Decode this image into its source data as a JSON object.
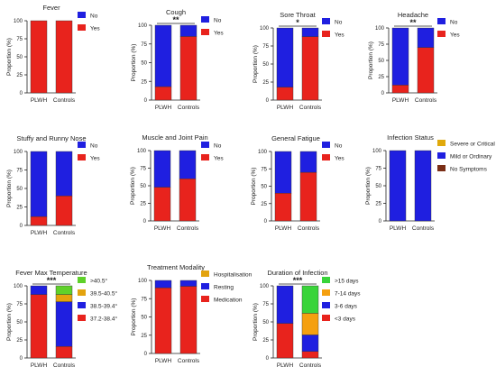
{
  "figure": {
    "colors": {
      "no": "#1f1fe0",
      "yes": "#e8231d",
      "severe": "#e0a90b",
      "mild": "#1f1fe0",
      "no_symptoms": "#7a2e16",
      "t405": "#5fd12a",
      "t395": "#e3a30e",
      "t385": "#1f1fe0",
      "t372": "#e8231d",
      "hospital": "#e3a30e",
      "resting": "#1f1fe0",
      "medication": "#e8231d",
      "d15": "#39d43a",
      "d714": "#f5a00f",
      "d36": "#1f1fe0",
      "d3": "#e8231d",
      "axis": "#222222"
    },
    "charts": [
      {
        "id": "fever",
        "type": "bar",
        "stacked": true,
        "title": "Fever",
        "ylabel": "Proportion (%)",
        "ylim": [
          0,
          100
        ],
        "yticks": [
          "0",
          "25",
          "50",
          "75",
          "100"
        ],
        "categories": [
          "PLWH",
          "Controls"
        ],
        "significance": "",
        "series": [
          {
            "name": "No",
            "color_key": "no",
            "values": [
              0,
              0
            ]
          },
          {
            "name": "Yes",
            "color_key": "yes",
            "values": [
              100,
              100
            ]
          }
        ]
      },
      {
        "id": "cough",
        "type": "bar",
        "stacked": true,
        "title": "Cough",
        "ylabel": "Proportion (%)",
        "ylim": [
          0,
          100
        ],
        "yticks": [
          "0",
          "25",
          "50",
          "75",
          "100"
        ],
        "categories": [
          "PLWH",
          "Controls"
        ],
        "significance": "**",
        "series": [
          {
            "name": "No",
            "color_key": "no",
            "values": [
              82,
              15
            ]
          },
          {
            "name": "Yes",
            "color_key": "yes",
            "values": [
              18,
              85
            ]
          }
        ]
      },
      {
        "id": "sore_throat",
        "type": "bar",
        "stacked": true,
        "title": "Sore Throat",
        "ylabel": "Proportion (%)",
        "ylim": [
          0,
          100
        ],
        "yticks": [
          "0",
          "25",
          "50",
          "75",
          "100"
        ],
        "categories": [
          "PLWH",
          "Controls"
        ],
        "significance": "*",
        "series": [
          {
            "name": "No",
            "color_key": "no",
            "values": [
              82,
              12
            ]
          },
          {
            "name": "Yes",
            "color_key": "yes",
            "values": [
              18,
              88
            ]
          }
        ]
      },
      {
        "id": "headache",
        "type": "bar",
        "stacked": true,
        "title": "Headache",
        "ylabel": "Proportion (%)",
        "ylim": [
          0,
          100
        ],
        "yticks": [
          "0",
          "25",
          "50",
          "75",
          "100"
        ],
        "categories": [
          "PLWH",
          "Controls"
        ],
        "significance": "**",
        "series": [
          {
            "name": "No",
            "color_key": "no",
            "values": [
              88,
              30
            ]
          },
          {
            "name": "Yes",
            "color_key": "yes",
            "values": [
              12,
              70
            ]
          }
        ]
      },
      {
        "id": "stuffy_nose",
        "type": "bar",
        "stacked": true,
        "title": "Stuffy and Runny Nose",
        "ylabel": "Proportion (%)",
        "ylim": [
          0,
          100
        ],
        "yticks": [
          "0",
          "25",
          "50",
          "75",
          "100"
        ],
        "categories": [
          "PLWH",
          "Controls"
        ],
        "significance": "",
        "series": [
          {
            "name": "No",
            "color_key": "no",
            "values": [
              88,
              60
            ]
          },
          {
            "name": "Yes",
            "color_key": "yes",
            "values": [
              12,
              40
            ]
          }
        ]
      },
      {
        "id": "muscle_joint",
        "type": "bar",
        "stacked": true,
        "title": "Muscle and Joint Pain",
        "ylabel": "Proportion (%)",
        "ylim": [
          0,
          100
        ],
        "yticks": [
          "0",
          "25",
          "50",
          "75",
          "100"
        ],
        "categories": [
          "PLWH",
          "Controls"
        ],
        "significance": "",
        "series": [
          {
            "name": "No",
            "color_key": "no",
            "values": [
              52,
              40
            ]
          },
          {
            "name": "Yes",
            "color_key": "yes",
            "values": [
              48,
              60
            ]
          }
        ]
      },
      {
        "id": "fatigue",
        "type": "bar",
        "stacked": true,
        "title": "General Fatigue",
        "ylabel": "Proportion (%)",
        "ylim": [
          0,
          100
        ],
        "yticks": [
          "0",
          "25",
          "50",
          "75",
          "100"
        ],
        "categories": [
          "PLWH",
          "Controls"
        ],
        "significance": "",
        "series": [
          {
            "name": "No",
            "color_key": "no",
            "values": [
              60,
              30
            ]
          },
          {
            "name": "Yes",
            "color_key": "yes",
            "values": [
              40,
              70
            ]
          }
        ]
      },
      {
        "id": "infection_status",
        "type": "bar",
        "stacked": true,
        "title": "Infection Status",
        "ylabel": "Proportion (%)",
        "ylim": [
          0,
          100
        ],
        "yticks": [
          "0",
          "25",
          "50",
          "75",
          "100"
        ],
        "categories": [
          "PLWH",
          "Controls"
        ],
        "significance": "",
        "series": [
          {
            "name": "Severe or Critical",
            "color_key": "severe",
            "values": [
              0,
              0
            ]
          },
          {
            "name": "Mild or Ordinary",
            "color_key": "mild",
            "values": [
              100,
              100
            ]
          },
          {
            "name": "No Symptoms",
            "color_key": "no_symptoms",
            "values": [
              0,
              0
            ]
          }
        ]
      },
      {
        "id": "fever_max_temp",
        "type": "bar",
        "stacked": true,
        "title": "Fever Max Temperature",
        "ylabel": "Proportion (%)",
        "ylim": [
          0,
          100
        ],
        "yticks": [
          "0",
          "25",
          "50",
          "75",
          "100"
        ],
        "categories": [
          "PLWH",
          "Controls"
        ],
        "significance": "***",
        "series": [
          {
            "name": ">40.5°",
            "color_key": "t405",
            "values": [
              0,
              12
            ]
          },
          {
            "name": "39.5-40.5°",
            "color_key": "t395",
            "values": [
              0,
              10
            ]
          },
          {
            "name": "38.5-39.4°",
            "color_key": "t385",
            "values": [
              12,
              62
            ]
          },
          {
            "name": "37.2-38.4°",
            "color_key": "t372",
            "values": [
              88,
              16
            ]
          }
        ]
      },
      {
        "id": "treatment_modality",
        "type": "bar",
        "stacked": true,
        "title": "Treatment Modality",
        "ylabel": "Proportion (%)",
        "ylim": [
          0,
          100
        ],
        "yticks": [
          "0",
          "25",
          "50",
          "75",
          "100"
        ],
        "categories": [
          "PLWH",
          "Controls"
        ],
        "significance": "",
        "series": [
          {
            "name": "Hospitalisation",
            "color_key": "hospital",
            "values": [
              0,
              0
            ]
          },
          {
            "name": "Resting",
            "color_key": "resting",
            "values": [
              10,
              8
            ]
          },
          {
            "name": "Medication",
            "color_key": "medication",
            "values": [
              90,
              92
            ]
          }
        ]
      },
      {
        "id": "duration",
        "type": "bar",
        "stacked": true,
        "title": "Duration of Infection",
        "ylabel": "Proportion (%)",
        "ylim": [
          0,
          100
        ],
        "yticks": [
          "0",
          "25",
          "50",
          "75",
          "100"
        ],
        "categories": [
          "PLWH",
          "Controls"
        ],
        "significance": "***",
        "series": [
          {
            "name": ">15 days",
            "color_key": "d15",
            "values": [
              0,
              38
            ]
          },
          {
            "name": "7-14 days",
            "color_key": "d714",
            "values": [
              0,
              30
            ]
          },
          {
            "name": "3-6 days",
            "color_key": "d36",
            "values": [
              52,
              23
            ]
          },
          {
            "name": "<3 days",
            "color_key": "d3",
            "values": [
              48,
              9
            ]
          }
        ]
      }
    ]
  }
}
